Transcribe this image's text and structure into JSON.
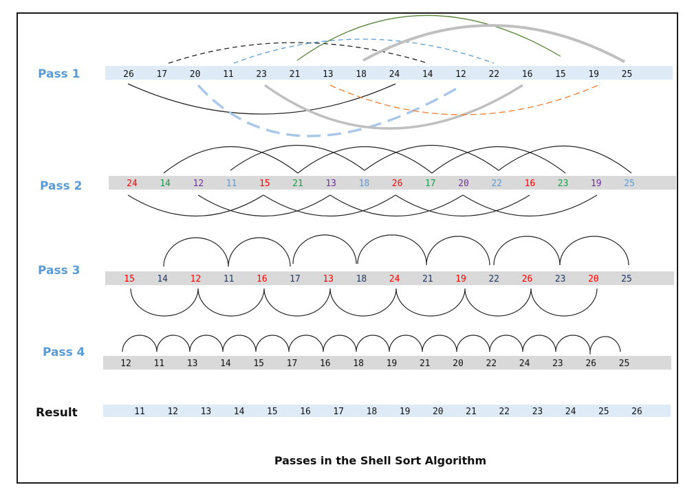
{
  "caption": "Passes in the Shell Sort Algorithm",
  "colors": {
    "label_blue": "#5b9bd5",
    "band_light_blue": "#deebf7",
    "band_gray": "#d9d9d9",
    "red": "#ff0000",
    "green": "#1a9c4a",
    "purple": "#7030a0",
    "light_blue": "#5b9bd5",
    "navy": "#1f3864",
    "black": "#111111"
  },
  "rows": [
    {
      "label": "Pass 1",
      "values": [
        "26",
        "17",
        "20",
        "11",
        "23",
        "21",
        "13",
        "18",
        "24",
        "14",
        "12",
        "22",
        "16",
        "15",
        "19",
        "25"
      ],
      "colors": [
        "black",
        "black",
        "black",
        "black",
        "black",
        "black",
        "black",
        "black",
        "black",
        "black",
        "black",
        "black",
        "black",
        "black",
        "black",
        "black"
      ]
    },
    {
      "label": "Pass 2",
      "values": [
        "24",
        "14",
        "12",
        "11",
        "15",
        "21",
        "13",
        "18",
        "26",
        "17",
        "20",
        "22",
        "16",
        "23",
        "19",
        "25"
      ],
      "colors": [
        "red",
        "green",
        "purple",
        "light_blue",
        "red",
        "green",
        "purple",
        "light_blue",
        "red",
        "green",
        "purple",
        "light_blue",
        "red",
        "green",
        "purple",
        "light_blue"
      ]
    },
    {
      "label": "Pass 3",
      "values": [
        "15",
        "14",
        "12",
        "11",
        "16",
        "17",
        "13",
        "18",
        "24",
        "21",
        "19",
        "22",
        "26",
        "23",
        "20",
        "25"
      ],
      "colors": [
        "red",
        "navy",
        "red",
        "navy",
        "red",
        "navy",
        "red",
        "navy",
        "red",
        "navy",
        "red",
        "navy",
        "red",
        "navy",
        "red",
        "navy"
      ]
    },
    {
      "label": "Pass 4",
      "values": [
        "12",
        "11",
        "13",
        "14",
        "15",
        "17",
        "16",
        "18",
        "19",
        "21",
        "20",
        "22",
        "24",
        "23",
        "26",
        "25"
      ],
      "colors": [
        "black",
        "black",
        "black",
        "black",
        "black",
        "black",
        "black",
        "black",
        "black",
        "black",
        "black",
        "black",
        "black",
        "black",
        "black",
        "black"
      ]
    },
    {
      "label": "Result",
      "values": [
        "11",
        "12",
        "13",
        "14",
        "15",
        "16",
        "17",
        "18",
        "19",
        "20",
        "21",
        "22",
        "23",
        "24",
        "25",
        "26"
      ],
      "colors": [
        "black",
        "black",
        "black",
        "black",
        "black",
        "black",
        "black",
        "black",
        "black",
        "black",
        "black",
        "black",
        "black",
        "black",
        "black",
        "black"
      ]
    }
  ]
}
